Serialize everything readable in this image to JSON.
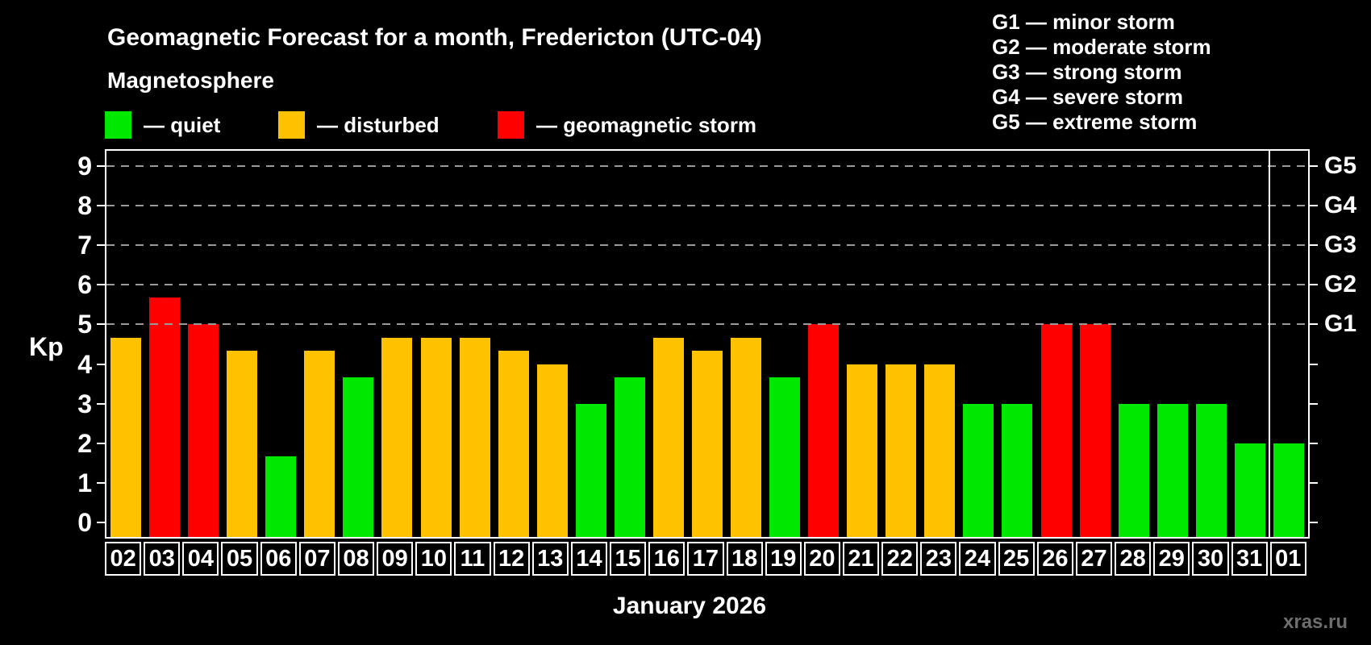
{
  "header": {
    "title": "Geomagnetic Forecast for a month, Fredericton (UTC-04)",
    "subtitle": "Magnetosphere"
  },
  "legend": {
    "items": [
      {
        "key": "quiet",
        "label": "— quiet",
        "x": 130
      },
      {
        "key": "disturbed",
        "label": "— disturbed",
        "x": 345
      },
      {
        "key": "storm",
        "label": "— geomagnetic storm",
        "x": 617
      }
    ]
  },
  "storm_scale": {
    "items": [
      "G1 — minor storm",
      "G2 — moderate storm",
      "G3 — strong storm",
      "G4 — severe storm",
      "G5 — extreme storm"
    ]
  },
  "chart_data": {
    "type": "bar",
    "title": "Geomagnetic Forecast for a month, Fredericton (UTC-04)",
    "xlabel": "January 2026",
    "ylabel": "Kp",
    "ylim": [
      -0.36,
      9.38
    ],
    "yticks": [
      0,
      1,
      2,
      3,
      4,
      5,
      6,
      7,
      8,
      9
    ],
    "gridlines_at": [
      5,
      6,
      7,
      8,
      9
    ],
    "grid": true,
    "right_axis_labels": [
      {
        "value": 5,
        "label": "G1"
      },
      {
        "value": 6,
        "label": "G2"
      },
      {
        "value": 7,
        "label": "G3"
      },
      {
        "value": 8,
        "label": "G4"
      },
      {
        "value": 9,
        "label": "G5"
      }
    ],
    "categories": [
      "02",
      "03",
      "04",
      "05",
      "06",
      "07",
      "08",
      "09",
      "10",
      "11",
      "12",
      "13",
      "14",
      "15",
      "16",
      "17",
      "18",
      "19",
      "20",
      "21",
      "22",
      "23",
      "24",
      "25",
      "26",
      "27",
      "28",
      "29",
      "30",
      "31",
      "01"
    ],
    "values": [
      4.67,
      5.67,
      5,
      4.33,
      1.67,
      4.33,
      3.67,
      4.67,
      4.67,
      4.67,
      4.33,
      4,
      3,
      3.67,
      4.67,
      4.33,
      4.67,
      3.67,
      5,
      4,
      4,
      4,
      3,
      3,
      5,
      5,
      3,
      3,
      3,
      2,
      2
    ],
    "statuses": [
      "disturbed",
      "storm",
      "storm",
      "disturbed",
      "quiet",
      "disturbed",
      "quiet",
      "disturbed",
      "disturbed",
      "disturbed",
      "disturbed",
      "disturbed",
      "quiet",
      "quiet",
      "disturbed",
      "disturbed",
      "disturbed",
      "quiet",
      "storm",
      "disturbed",
      "disturbed",
      "disturbed",
      "quiet",
      "quiet",
      "storm",
      "storm",
      "quiet",
      "quiet",
      "quiet",
      "quiet",
      "quiet"
    ],
    "status_colors": {
      "quiet": "#00e700",
      "disturbed": "#ffc200",
      "storm": "#ff0000"
    },
    "month_separator_before_category": "01"
  },
  "footer": {
    "month_label": "January 2026",
    "watermark": "xras.ru"
  }
}
